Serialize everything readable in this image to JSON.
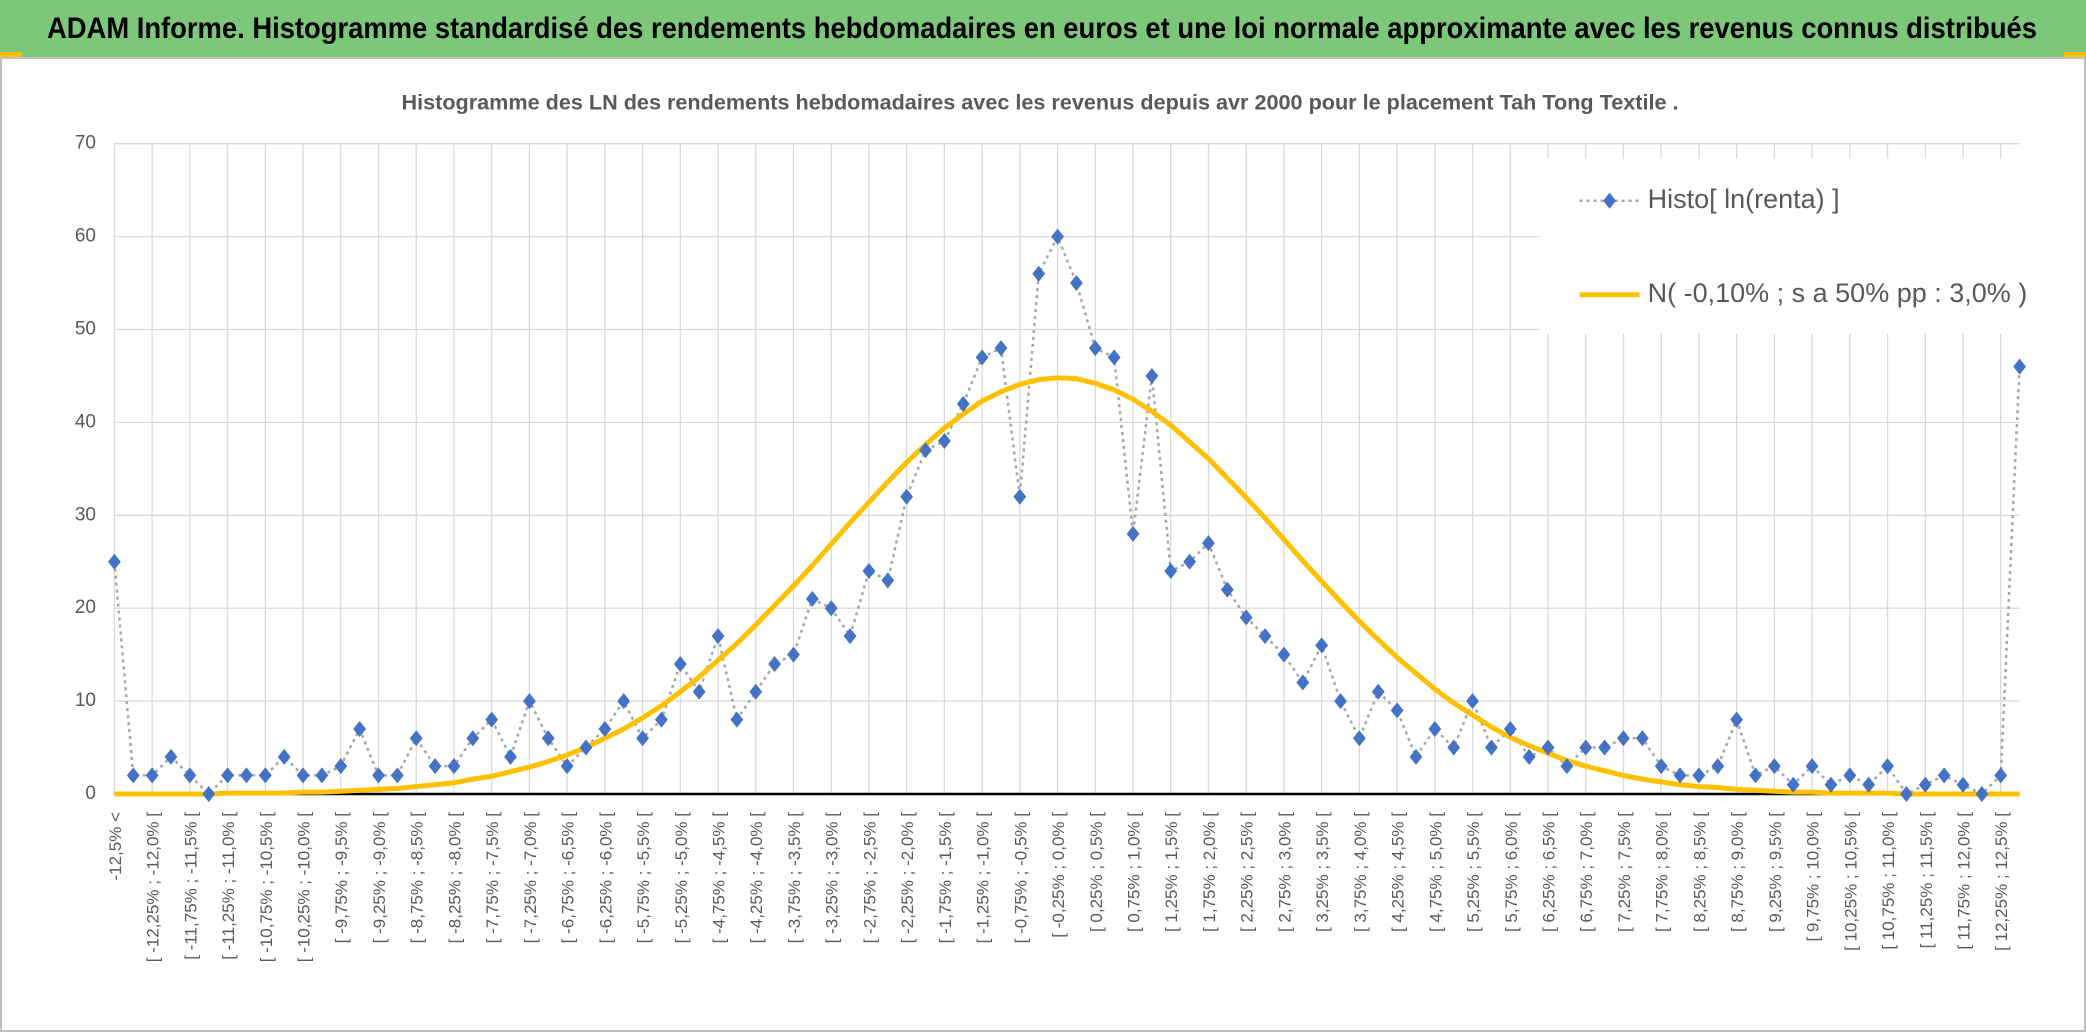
{
  "header": {
    "title": "ADAM Informe. Histogramme standardisé des rendements hebdomadaires en euros et une loi normale approximante avec les revenus connus distribués"
  },
  "chart_data": {
    "type": "line",
    "title": "Histogramme des LN des rendements hebdomadaires avec les revenus depuis avr 2000 pour le placement Tah Tong Textile .",
    "categories": [
      "-12,5% <",
      null,
      "[ -12,25% ; -12,0% [",
      null,
      "[ -11,75% ; -11,5% [",
      null,
      "[ -11,25% ; -11,0% [",
      null,
      "[ -10,75% ; -10,5% [",
      null,
      "[ -10,25% ; -10,0% [",
      null,
      "[ -9,75% ; -9,5% [",
      null,
      "[ -9,25% ; -9,0% [",
      null,
      "[ -8,75% ; -8,5% [",
      null,
      "[ -8,25% ; -8,0% [",
      null,
      "[ -7,75% ; -7,5% [",
      null,
      "[ -7,25% ; -7,0% [",
      null,
      "[ -6,75% ; -6,5% [",
      null,
      "[ -6,25% ; -6,0% [",
      null,
      "[ -5,75% ; -5,5% [",
      null,
      "[ -5,25% ; -5,0% [",
      null,
      "[ -4,75% ; -4,5% [",
      null,
      "[ -4,25% ; -4,0% [",
      null,
      "[ -3,75% ; -3,5% [",
      null,
      "[ -3,25% ; -3,0% [",
      null,
      "[ -2,75% ; -2,5% [",
      null,
      "[ -2,25% ; -2,0% [",
      null,
      "[ -1,75% ; -1,5% [",
      null,
      "[ -1,25% ; -1,0% [",
      null,
      "[ -0,75% ; -0,5% [",
      null,
      "[ -0,25% ; 0,0% [",
      null,
      "[ 0,25% ; 0,5% [",
      null,
      "[ 0,75% ; 1,0% [",
      null,
      "[ 1,25% ; 1,5% [",
      null,
      "[ 1,75% ; 2,0% [",
      null,
      "[ 2,25% ; 2,5% [",
      null,
      "[ 2,75% ; 3,0% [",
      null,
      "[ 3,25% ; 3,5% [",
      null,
      "[ 3,75% ; 4,0% [",
      null,
      "[ 4,25% ; 4,5% [",
      null,
      "[ 4,75% ; 5,0% [",
      null,
      "[ 5,25% ; 5,5% [",
      null,
      "[ 5,75% ; 6,0% [",
      null,
      "[ 6,25% ; 6,5% [",
      null,
      "[ 6,75% ; 7,0% [",
      null,
      "[ 7,25% ; 7,5% [",
      null,
      "[ 7,75% ; 8,0% [",
      null,
      "[ 8,25% ; 8,5% [",
      null,
      "[ 8,75% ; 9,0% [",
      null,
      "[ 9,25% ; 9,5% [",
      null,
      "[ 9,75% ; 10,0% [",
      null,
      "[ 10,25% ; 10,5% [",
      null,
      "[ 10,75% ; 11,0% [",
      null,
      "[ 11,25% ; 11,5% [",
      null,
      "[ 11,75% ; 12,0% [",
      null,
      "[ 12,25% ; 12,5% [",
      null
    ],
    "series": [
      {
        "name": "Histo[ ln(renta) ]",
        "color": "#4472c4",
        "line_color": "#a6a6a6",
        "markers": "diamond",
        "line_style": "dotted",
        "values": [
          25,
          2,
          2,
          4,
          2,
          0,
          2,
          2,
          2,
          4,
          2,
          2,
          3,
          7,
          2,
          2,
          6,
          3,
          3,
          6,
          8,
          4,
          10,
          6,
          3,
          5,
          7,
          10,
          6,
          8,
          14,
          11,
          17,
          8,
          11,
          14,
          15,
          21,
          20,
          17,
          24,
          23,
          32,
          37,
          38,
          42,
          47,
          48,
          32,
          56,
          60,
          55,
          48,
          47,
          28,
          45,
          24,
          25,
          27,
          22,
          19,
          17,
          15,
          12,
          16,
          10,
          6,
          11,
          9,
          4,
          7,
          5,
          10,
          5,
          7,
          4,
          5,
          3,
          5,
          5,
          6,
          6,
          3,
          2,
          2,
          3,
          8,
          2,
          3,
          1,
          3,
          1,
          2,
          1,
          3,
          0,
          1,
          2,
          1,
          0,
          2,
          46
        ]
      },
      {
        "name": "N( -0,10% ; s a 50% pp : 3,0% )",
        "color": "#ffc000",
        "line_style": "solid",
        "values": [
          0,
          0,
          0,
          0,
          0,
          0,
          0.1,
          0.1,
          0.1,
          0.1,
          0.2,
          0.2,
          0.3,
          0.4,
          0.5,
          0.6,
          0.8,
          1.0,
          1.2,
          1.6,
          1.9,
          2.4,
          2.9,
          3.5,
          4.2,
          5.0,
          6.0,
          7.0,
          8.2,
          9.5,
          11.0,
          12.6,
          14.4,
          16.2,
          18.2,
          20.3,
          22.4,
          24.6,
          26.9,
          29.2,
          31.4,
          33.6,
          35.7,
          37.6,
          39.4,
          40.9,
          42.3,
          43.3,
          44.1,
          44.6,
          44.8,
          44.7,
          44.2,
          43.5,
          42.5,
          41.2,
          39.7,
          37.9,
          36.1,
          34.0,
          31.9,
          29.7,
          27.4,
          25.1,
          22.9,
          20.7,
          18.6,
          16.6,
          14.7,
          13.0,
          11.3,
          9.8,
          8.5,
          7.2,
          6.1,
          5.2,
          4.4,
          3.6,
          3.0,
          2.5,
          2.0,
          1.6,
          1.3,
          1.0,
          0.8,
          0.7,
          0.5,
          0.4,
          0.3,
          0.2,
          0.2,
          0.1,
          0.1,
          0.1,
          0.1,
          0,
          0,
          0,
          0,
          0,
          0,
          0
        ]
      }
    ],
    "ylim": [
      0,
      70
    ],
    "yticks": [
      0,
      10,
      20,
      30,
      40,
      50,
      60,
      70
    ],
    "grid": true,
    "legend": "top-right"
  }
}
